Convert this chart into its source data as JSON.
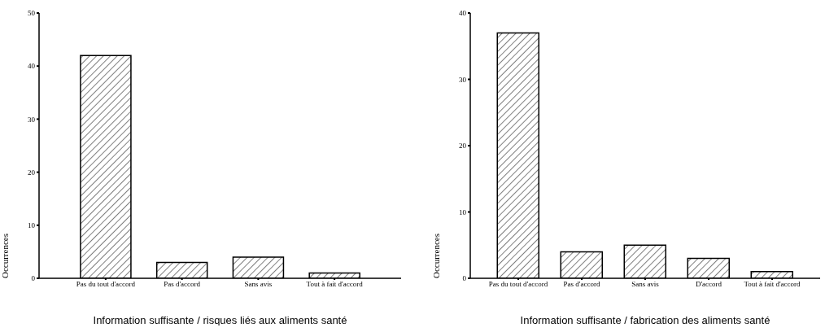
{
  "chart_data": [
    {
      "type": "bar",
      "categories": [
        "Pas du tout d'accord",
        "Pas d'accord",
        "Sans avis",
        "Tout à fait d'accord"
      ],
      "values": [
        42,
        3,
        4,
        1
      ],
      "color": "#000000",
      "xlabel": "Information suffisante / risques liés aux aliments santé",
      "ylabel": "Occurrences",
      "ylim": [
        0,
        50
      ],
      "yticks": [
        0,
        10,
        20,
        30,
        40,
        50
      ],
      "grid": false,
      "legend": false
    },
    {
      "type": "bar",
      "categories": [
        "Pas du tout d'accord",
        "Pas d'accord",
        "Sans avis",
        "D'accord",
        "Tout à fait d'accord"
      ],
      "values": [
        37,
        4,
        5,
        3,
        1
      ],
      "color": "#000000",
      "xlabel": "Information suffisante / fabrication des aliments santé",
      "ylabel": "Occurrences",
      "ylim": [
        0,
        40
      ],
      "yticks": [
        0,
        10,
        20,
        30,
        40
      ],
      "grid": false,
      "legend": false
    }
  ]
}
